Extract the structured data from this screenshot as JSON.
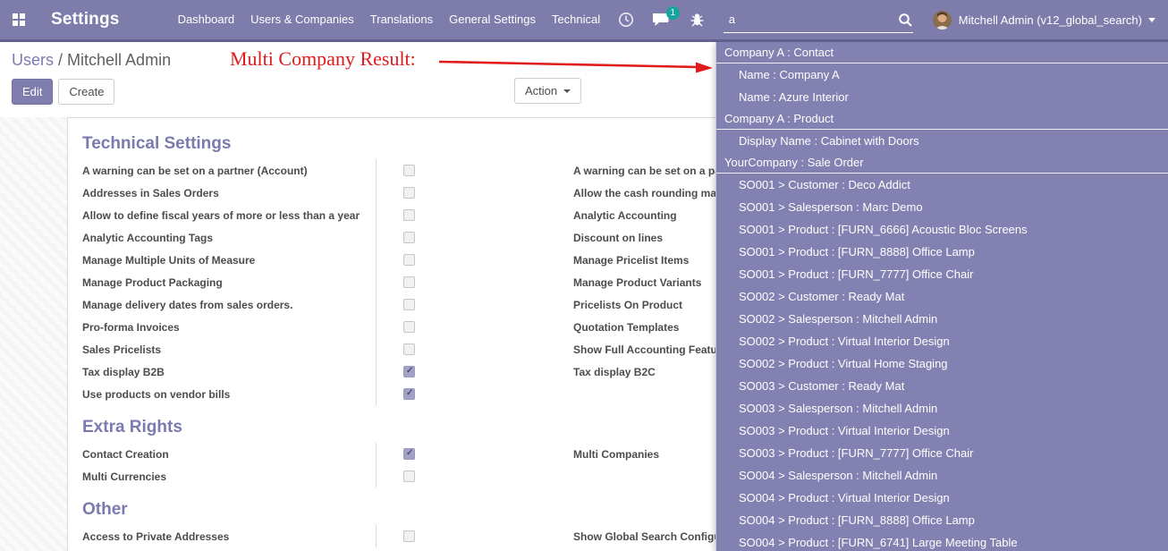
{
  "navbar": {
    "title": "Settings",
    "menus": [
      {
        "label": "Dashboard"
      },
      {
        "label": "Users & Companies"
      },
      {
        "label": "Translations"
      },
      {
        "label": "General Settings"
      },
      {
        "label": "Technical"
      }
    ],
    "systray": {
      "chat_badge": "1",
      "icons": [
        "clock-icon",
        "chat-bubble-icon",
        "bug-icon"
      ]
    },
    "search": {
      "value": "a",
      "icon": "magnifier-icon"
    },
    "user": {
      "name": "Mitchell Admin (v12_global_search)"
    }
  },
  "control_panel": {
    "breadcrumb": {
      "parent": "Users",
      "separator": " / ",
      "current": "Mitchell Admin"
    },
    "buttons": {
      "edit": "Edit",
      "create": "Create",
      "action": "Action"
    }
  },
  "annotation": {
    "text": "Multi Company Result:"
  },
  "form": {
    "sections": [
      {
        "title": "Technical Settings",
        "left": [
          {
            "label": "A warning can be set on a partner (Account)",
            "checked": false
          },
          {
            "label": "Addresses in Sales Orders",
            "checked": false
          },
          {
            "label": "Allow to define fiscal years of more or less than a year",
            "checked": false
          },
          {
            "label": "Analytic Accounting Tags",
            "checked": false
          },
          {
            "label": "Manage Multiple Units of Measure",
            "checked": false
          },
          {
            "label": "Manage Product Packaging",
            "checked": false
          },
          {
            "label": "Manage delivery dates from sales orders.",
            "checked": false
          },
          {
            "label": "Pro-forma Invoices",
            "checked": false
          },
          {
            "label": "Sales Pricelists",
            "checked": false
          },
          {
            "label": "Tax display B2B",
            "checked": true
          },
          {
            "label": "Use products on vendor bills",
            "checked": true
          }
        ],
        "right": [
          {
            "label": "A warning can be set on a partner (Sale)",
            "checked": false
          },
          {
            "label": "Allow the cash rounding management",
            "checked": false
          },
          {
            "label": "Analytic Accounting",
            "checked": false
          },
          {
            "label": "Discount on lines",
            "checked": false
          },
          {
            "label": "Manage Pricelist Items",
            "checked": false
          },
          {
            "label": "Manage Product Variants",
            "checked": false
          },
          {
            "label": "Pricelists On Product",
            "checked": false
          },
          {
            "label": "Quotation Templates",
            "checked": false
          },
          {
            "label": "Show Full Accounting Features",
            "checked": false
          },
          {
            "label": "Tax display B2C",
            "checked": false
          }
        ]
      },
      {
        "title": "Extra Rights",
        "left": [
          {
            "label": "Contact Creation",
            "checked": true
          },
          {
            "label": "Multi Currencies",
            "checked": false
          }
        ],
        "right": [
          {
            "label": "Multi Companies",
            "checked": false
          }
        ]
      },
      {
        "title": "Other",
        "left": [
          {
            "label": "Access to Private Addresses",
            "checked": false
          }
        ],
        "right": [
          {
            "label": "Show Global Search Configuration",
            "checked": false
          }
        ]
      }
    ]
  },
  "search_dropdown": {
    "rows": [
      {
        "type": "header",
        "label": "Company A : Contact"
      },
      {
        "type": "item",
        "label": "Name : Company A"
      },
      {
        "type": "item",
        "label": "Name : Azure Interior"
      },
      {
        "type": "header",
        "label": "Company A : Product"
      },
      {
        "type": "item",
        "label": "Display Name : Cabinet with Doors"
      },
      {
        "type": "header",
        "label": "YourCompany : Sale Order"
      },
      {
        "type": "item",
        "label": "SO001 > Customer : Deco Addict"
      },
      {
        "type": "item",
        "label": "SO001 > Salesperson : Marc Demo"
      },
      {
        "type": "item",
        "label": "SO001 > Product : [FURN_6666] Acoustic Bloc Screens"
      },
      {
        "type": "item",
        "label": "SO001 > Product : [FURN_8888] Office Lamp"
      },
      {
        "type": "item",
        "label": "SO001 > Product : [FURN_7777] Office Chair"
      },
      {
        "type": "item",
        "label": "SO002 > Customer : Ready Mat"
      },
      {
        "type": "item",
        "label": "SO002 > Salesperson : Mitchell Admin"
      },
      {
        "type": "item",
        "label": "SO002 > Product : Virtual Interior Design"
      },
      {
        "type": "item",
        "label": "SO002 > Product : Virtual Home Staging"
      },
      {
        "type": "item",
        "label": "SO003 > Customer : Ready Mat"
      },
      {
        "type": "item",
        "label": "SO003 > Salesperson : Mitchell Admin"
      },
      {
        "type": "item",
        "label": "SO003 > Product : Virtual Interior Design"
      },
      {
        "type": "item",
        "label": "SO003 > Product : [FURN_7777] Office Chair"
      },
      {
        "type": "item",
        "label": "SO004 > Salesperson : Mitchell Admin"
      },
      {
        "type": "item",
        "label": "SO004 > Product : Virtual Interior Design"
      },
      {
        "type": "item",
        "label": "SO004 > Product : [FURN_8888] Office Lamp"
      },
      {
        "type": "item",
        "label": "SO004 > Product : [FURN_6741] Large Meeting Table"
      }
    ]
  },
  "colors": {
    "navbar_bg": "#7d7cab",
    "dropdown_bg": "#8281b1",
    "accent_purple": "#7b7aae",
    "annotation_red": "#e01b1b",
    "badge_teal": "#16a59c",
    "checkbox_checked": "#a3a2c6"
  }
}
